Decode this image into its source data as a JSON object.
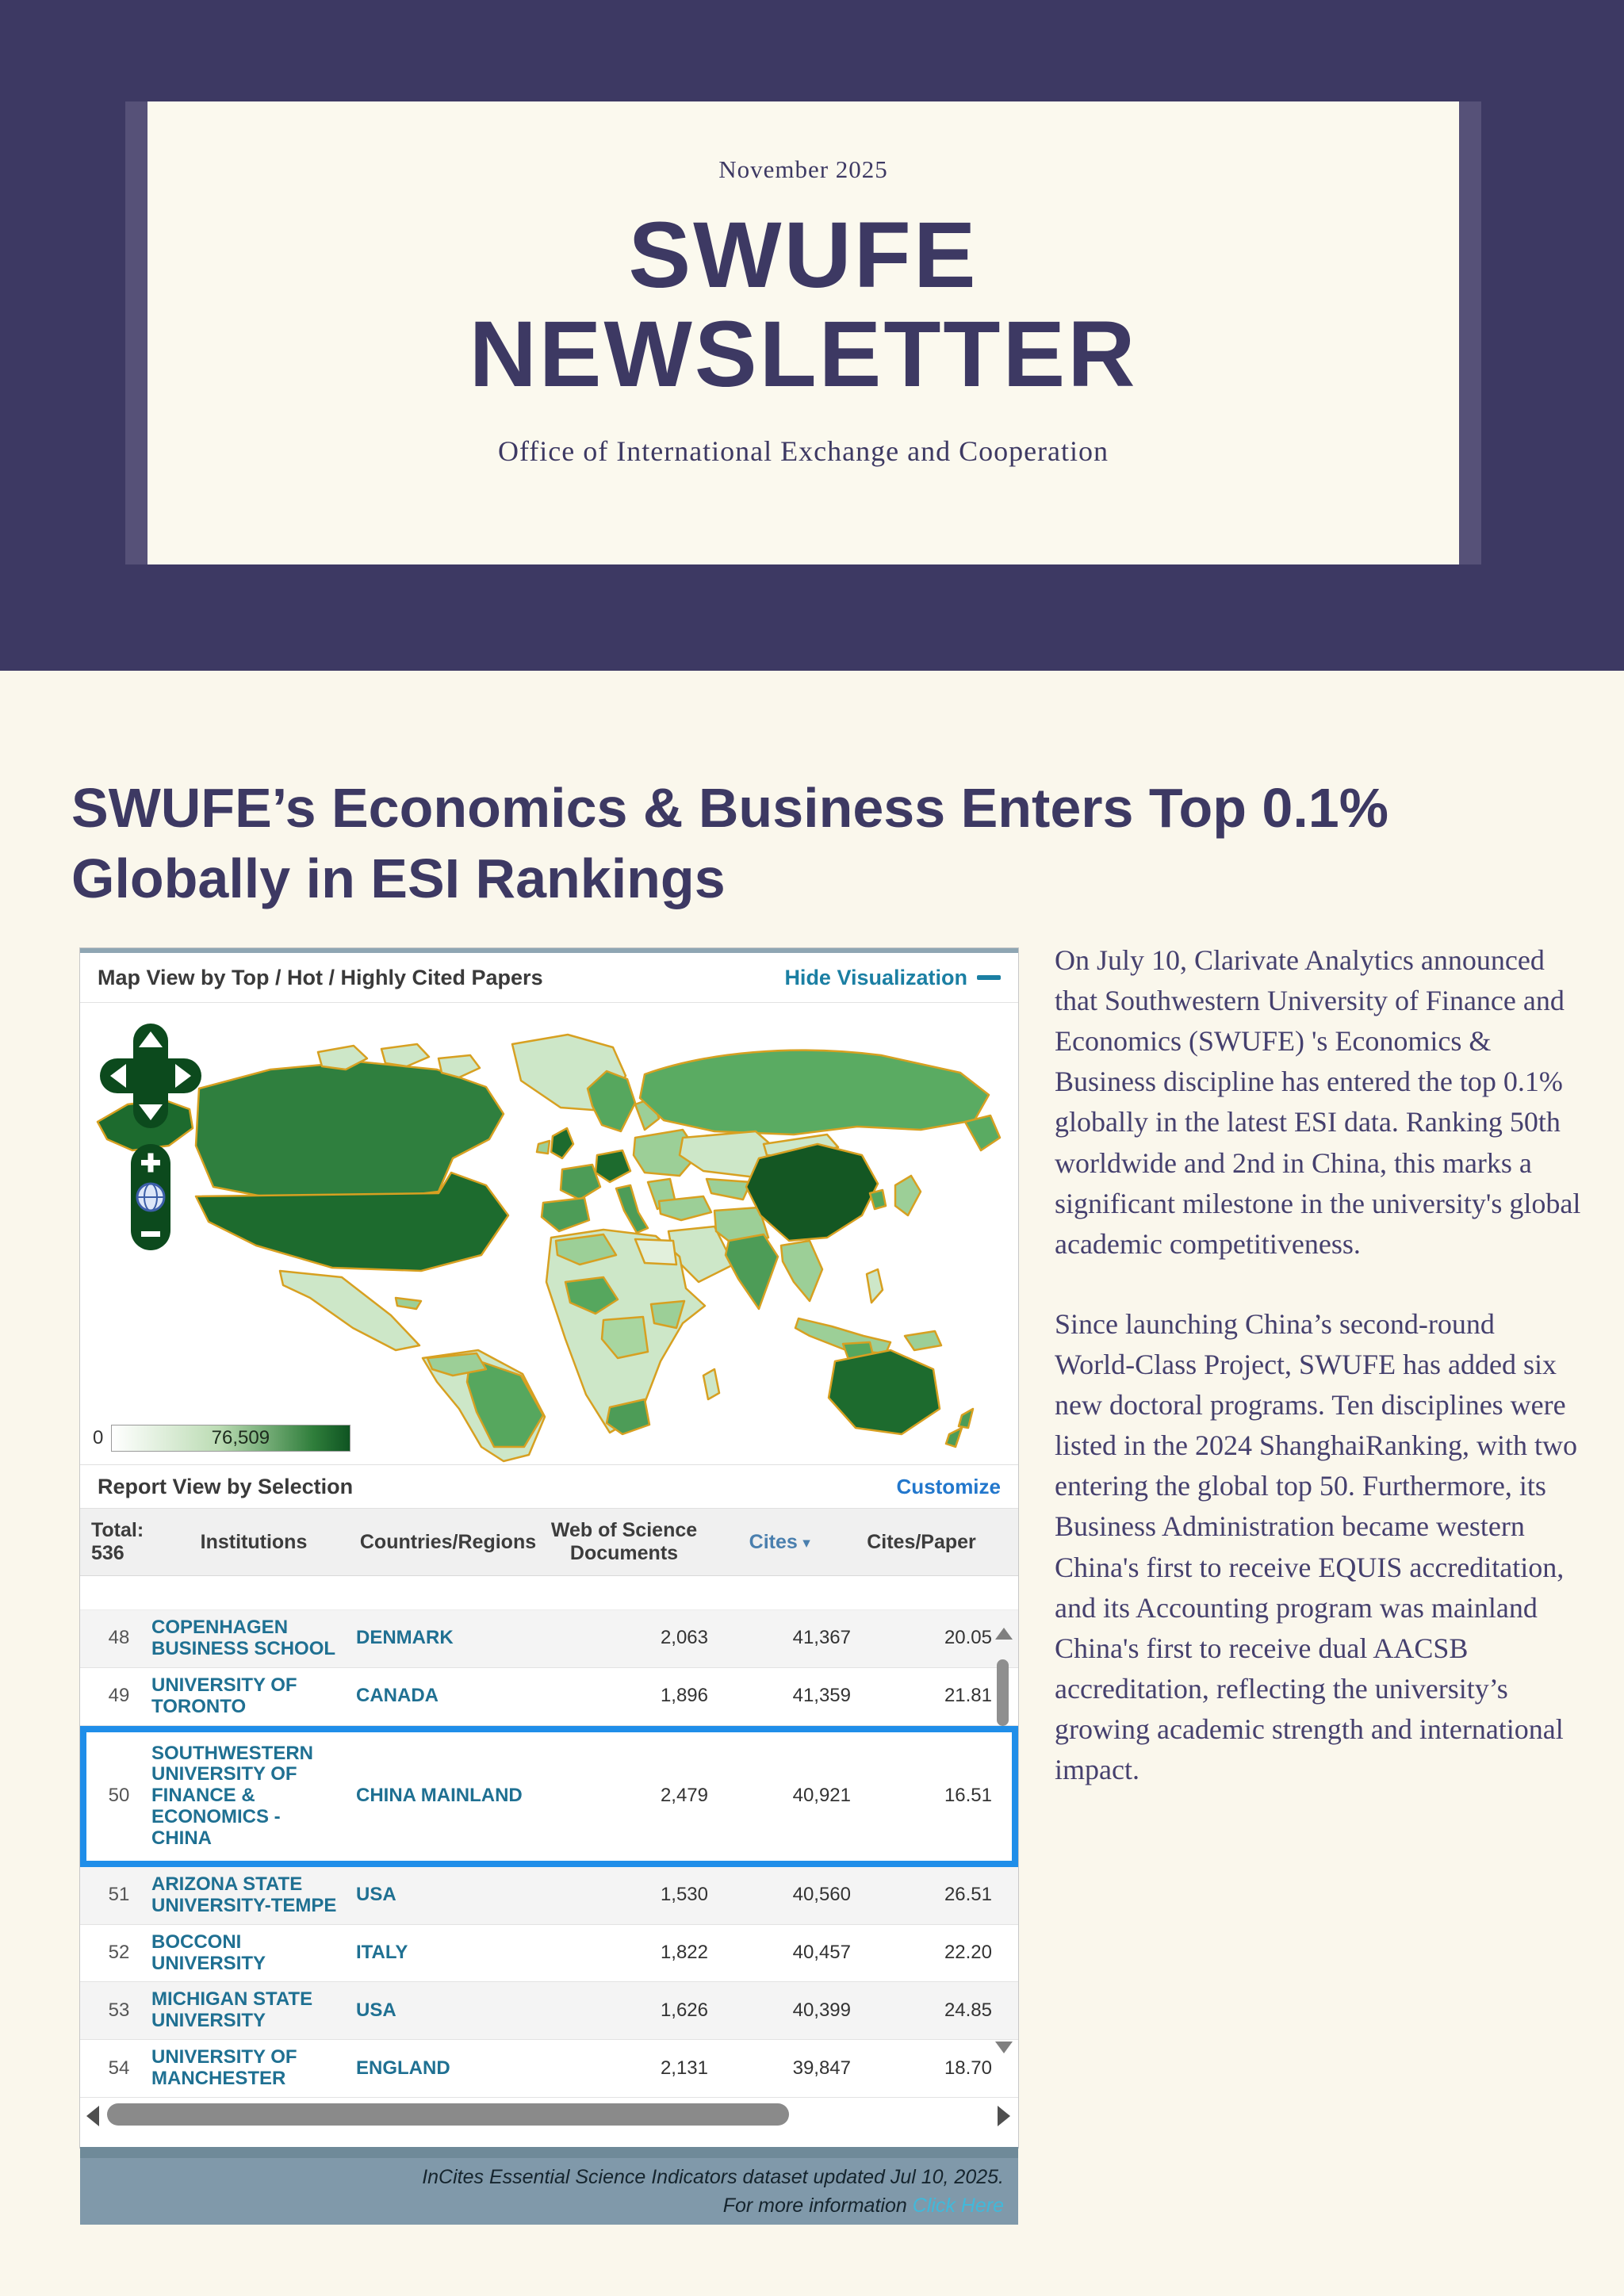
{
  "masthead": {
    "date": "November 2025",
    "title_line1": "SWUFE",
    "title_line2": "NEWSLETTER",
    "subtitle": "Office of International Exchange and Cooperation"
  },
  "headline": "SWUFE’s Economics & Business Enters Top 0.1% Globally in ESI Rankings",
  "esi": {
    "map_header": {
      "title": "Map View by Top / Hot / Highly Cited Papers",
      "hide_label": "Hide Visualization"
    },
    "legend": {
      "min": "0",
      "max": "76,509"
    },
    "report_bar": {
      "title": "Report View by Selection",
      "customize": "Customize"
    },
    "table": {
      "total_label": "Total:",
      "total_value": "536",
      "columns": [
        "Institutions",
        "Countries/Regions",
        "Web of Science Documents",
        "Cites",
        "Cites/Paper"
      ],
      "sort_arrow": "▾",
      "rows": [
        {
          "rank": "48",
          "institution": "COPENHAGEN BUSINESS SCHOOL",
          "country": "DENMARK",
          "docs": "2,063",
          "cites": "41,367",
          "cpp": "20.05",
          "highlight": false
        },
        {
          "rank": "49",
          "institution": "UNIVERSITY OF TORONTO",
          "country": "CANADA",
          "docs": "1,896",
          "cites": "41,359",
          "cpp": "21.81",
          "highlight": false
        },
        {
          "rank": "50",
          "institution": "SOUTHWESTERN UNIVERSITY OF FINANCE & ECONOMICS - CHINA",
          "country": "CHINA MAINLAND",
          "docs": "2,479",
          "cites": "40,921",
          "cpp": "16.51",
          "highlight": true
        },
        {
          "rank": "51",
          "institution": "ARIZONA STATE UNIVERSITY-TEMPE",
          "country": "USA",
          "docs": "1,530",
          "cites": "40,560",
          "cpp": "26.51",
          "highlight": false
        },
        {
          "rank": "52",
          "institution": "BOCCONI UNIVERSITY",
          "country": "ITALY",
          "docs": "1,822",
          "cites": "40,457",
          "cpp": "22.20",
          "highlight": false
        },
        {
          "rank": "53",
          "institution": "MICHIGAN STATE UNIVERSITY",
          "country": "USA",
          "docs": "1,626",
          "cites": "40,399",
          "cpp": "24.85",
          "highlight": false
        },
        {
          "rank": "54",
          "institution": "UNIVERSITY OF MANCHESTER",
          "country": "ENGLAND",
          "docs": "2,131",
          "cites": "39,847",
          "cpp": "18.70",
          "highlight": false
        }
      ]
    },
    "footer": {
      "line1": "InCites Essential Science Indicators dataset updated Jul 10, 2025.",
      "line2_prefix": "For more information ",
      "line2_link": "Click Here"
    }
  },
  "article": {
    "paragraphs": [
      "On July 10, Clarivate Analytics announced that Southwestern University of Finance and Economics (SWUFE) 's Economics & Business discipline has entered the top 0.1% globally in the latest ESI data. Ranking 50th worldwide and 2nd in China, this marks a significant milestone in the university's global academic competitiveness.",
      "Since launching China’s second-round World-Class Project, SWUFE has added six new doctoral programs. Ten disciplines were listed in the 2024 ShanghaiRanking, with two entering the global top 50. Furthermore, its Business Administration became western China's first to receive EQUIS accreditation, and its Accounting program was mainland China's first to receive dual AACSB accreditation, reflecting the university’s growing academic strength and international impact."
    ]
  },
  "colors": {
    "band_purple": "#3d3963",
    "accent_purple": "#565178",
    "card_cream": "#fbf9ee",
    "highlight_blue": "#1f8ee9",
    "teal_link": "#1b7fa3",
    "customize_blue": "#2277cc",
    "footer_bar": "#8099aa",
    "map_dark_green": "#145723",
    "map_legend_max_green": "#0f5422"
  }
}
